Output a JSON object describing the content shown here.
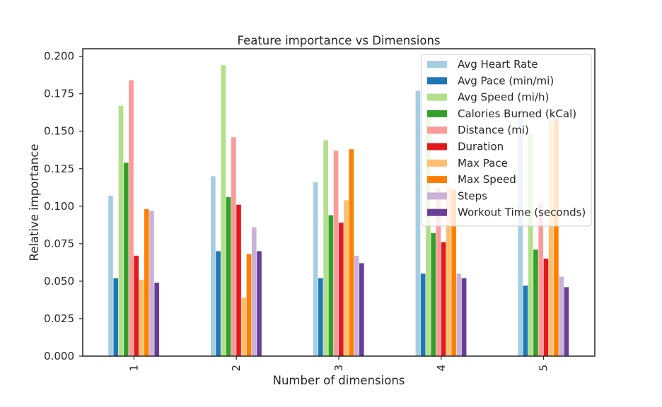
{
  "chart_data": {
    "type": "bar",
    "title": "Feature importance vs Dimensions",
    "xlabel": "Number of dimensions",
    "ylabel": "Relative importance",
    "categories": [
      "1",
      "2",
      "3",
      "4",
      "5"
    ],
    "ylim": [
      0,
      0.205
    ],
    "yticks": [
      "0.000",
      "0.025",
      "0.050",
      "0.075",
      "0.100",
      "0.125",
      "0.150",
      "0.175",
      "0.200"
    ],
    "grid": false,
    "legend_position": "top-right",
    "series": [
      {
        "name": "Avg Heart Rate",
        "color": "#a6cee3",
        "values": [
          0.107,
          0.12,
          0.116,
          0.177,
          0.163
        ]
      },
      {
        "name": "Avg Pace (min/mi)",
        "color": "#1f78b4",
        "values": [
          0.052,
          0.07,
          0.052,
          0.055,
          0.047
        ]
      },
      {
        "name": "Avg Speed (mi/h)",
        "color": "#b2df8a",
        "values": [
          0.167,
          0.194,
          0.144,
          0.163,
          0.148
        ]
      },
      {
        "name": "Calories Burned (kCal)",
        "color": "#33a02c",
        "values": [
          0.129,
          0.106,
          0.094,
          0.082,
          0.071
        ]
      },
      {
        "name": "Distance (mi)",
        "color": "#fb9a99",
        "values": [
          0.184,
          0.146,
          0.137,
          0.112,
          0.102
        ]
      },
      {
        "name": "Duration",
        "color": "#e31a1c",
        "values": [
          0.067,
          0.101,
          0.089,
          0.076,
          0.065
        ]
      },
      {
        "name": "Max Pace",
        "color": "#fdbf6f",
        "values": [
          0.051,
          0.039,
          0.104,
          0.113,
          0.157
        ]
      },
      {
        "name": "Max Speed",
        "color": "#ff7f00",
        "values": [
          0.098,
          0.068,
          0.138,
          0.111,
          0.158
        ]
      },
      {
        "name": "Steps",
        "color": "#cab2d6",
        "values": [
          0.097,
          0.086,
          0.067,
          0.055,
          0.053
        ]
      },
      {
        "name": "Workout Time (seconds)",
        "color": "#6a3d9a",
        "values": [
          0.049,
          0.07,
          0.062,
          0.052,
          0.046
        ]
      }
    ]
  }
}
